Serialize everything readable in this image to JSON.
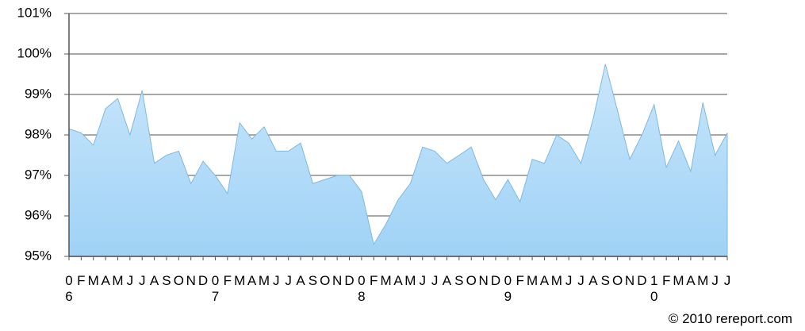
{
  "chart_data": {
    "type": "area",
    "color": "#a9d8f8",
    "grid": true,
    "categories": [
      "0\n6",
      "F",
      "M",
      "A",
      "M",
      "J",
      "J",
      "A",
      "S",
      "O",
      "N",
      "D",
      "0\n7",
      "F",
      "M",
      "A",
      "M",
      "J",
      "J",
      "A",
      "S",
      "O",
      "N",
      "D",
      "0\n8",
      "F",
      "M",
      "A",
      "M",
      "J",
      "J",
      "A",
      "S",
      "O",
      "N",
      "D",
      "0\n9",
      "F",
      "M",
      "A",
      "M",
      "J",
      "J",
      "A",
      "S",
      "O",
      "N",
      "D",
      "1\n0",
      "F",
      "M",
      "A",
      "M",
      "J",
      "J"
    ],
    "values": [
      98.15,
      98.05,
      97.75,
      98.65,
      98.9,
      98.0,
      99.1,
      97.3,
      97.5,
      97.6,
      96.8,
      97.35,
      97.0,
      96.55,
      98.3,
      97.9,
      98.2,
      97.6,
      97.6,
      97.8,
      96.8,
      96.9,
      97.0,
      97.0,
      96.6,
      95.3,
      95.8,
      96.4,
      96.8,
      97.7,
      97.6,
      97.3,
      97.5,
      97.7,
      96.9,
      96.4,
      96.9,
      96.35,
      97.4,
      97.3,
      98.0,
      97.8,
      97.3,
      98.4,
      99.75,
      98.6,
      97.4,
      98.0,
      98.75,
      97.2,
      97.85,
      97.1,
      98.8,
      97.5,
      98.05
    ],
    "ylim": [
      95,
      101
    ],
    "yticks": [
      {
        "value": 95,
        "label": "95%"
      },
      {
        "value": 96,
        "label": "96%"
      },
      {
        "value": 97,
        "label": "97%"
      },
      {
        "value": 98,
        "label": "98%"
      },
      {
        "value": 99,
        "label": "99%"
      },
      {
        "value": 100,
        "label": "100%"
      },
      {
        "value": 101,
        "label": "101%"
      }
    ]
  },
  "footer": "© 2010 rereport.com"
}
